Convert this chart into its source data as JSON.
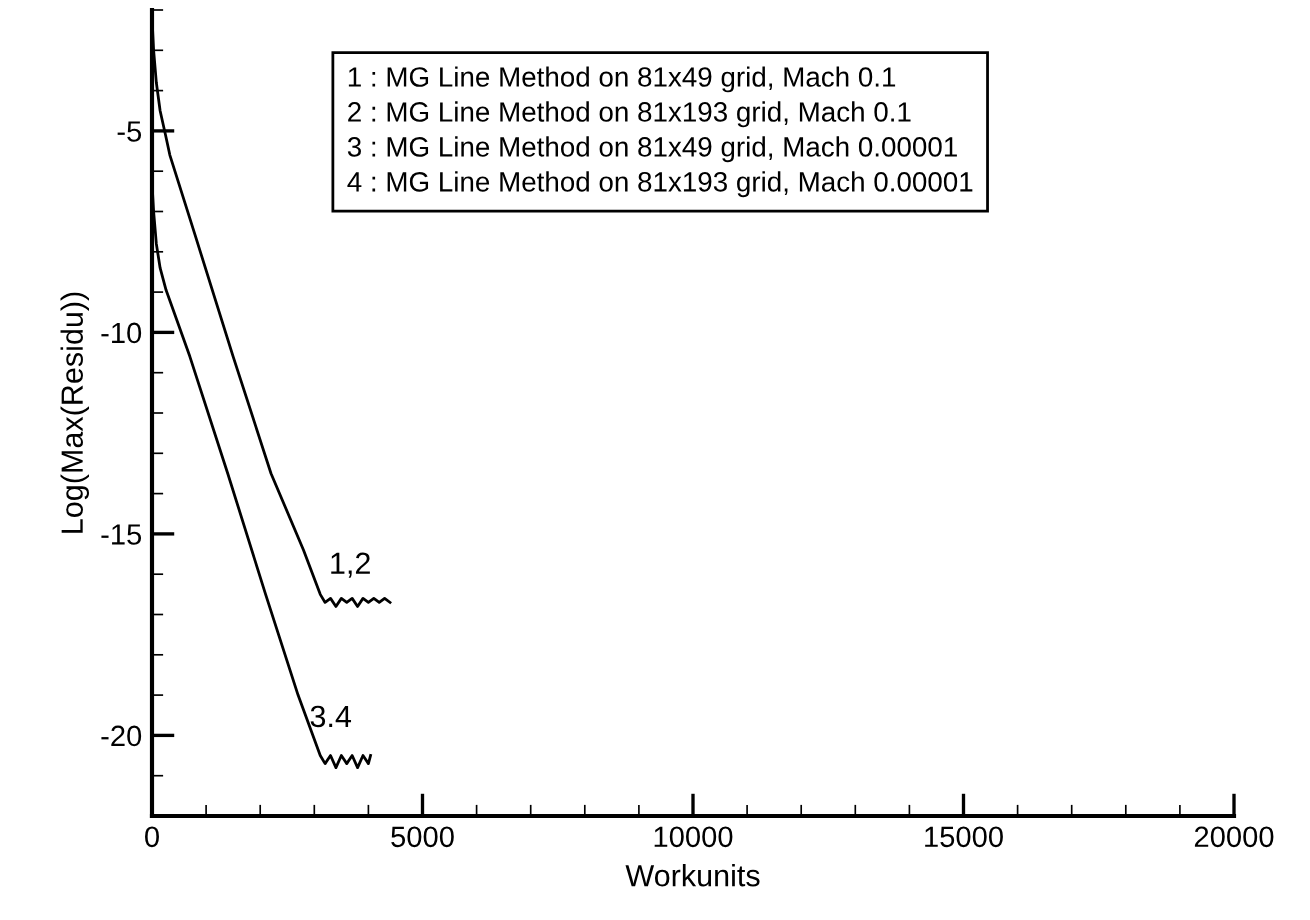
{
  "chart_data": {
    "type": "line",
    "xlabel": "Workunits",
    "ylabel": "Log(Max(Residu))",
    "xlim": [
      0,
      20000
    ],
    "ylim": [
      -22,
      -2
    ],
    "xticks": [
      0,
      5000,
      10000,
      15000,
      20000
    ],
    "yticks": [
      -20,
      -15,
      -10,
      -5
    ],
    "grid": false,
    "marker": "none",
    "line_style": "solid",
    "series": [
      {
        "color": "#000000",
        "x": [
          0,
          30,
          80,
          150,
          250,
          330,
          800,
          1500,
          2200,
          2800,
          3110,
          3200,
          3300,
          3400,
          3500,
          3600,
          3700,
          3800,
          3900,
          4000,
          4100,
          4200,
          4300,
          4400
        ],
        "values": [
          -2.2,
          -3.0,
          -3.8,
          -4.5,
          -5.1,
          -5.6,
          -7.6,
          -10.6,
          -13.5,
          -15.4,
          -16.5,
          -16.7,
          -16.6,
          -16.8,
          -16.6,
          -16.7,
          -16.6,
          -16.8,
          -16.6,
          -16.7,
          -16.6,
          -16.7,
          -16.6,
          -16.7
        ]
      },
      {
        "color": "#000000",
        "x": [
          0,
          30,
          80,
          150,
          260,
          700,
          1400,
          2100,
          2700,
          3110,
          3200,
          3300,
          3400,
          3500,
          3600,
          3700,
          3800,
          3900,
          4000,
          4040
        ],
        "values": [
          -6.3,
          -7.0,
          -7.8,
          -8.4,
          -8.95,
          -10.6,
          -13.5,
          -16.5,
          -19.0,
          -20.5,
          -20.7,
          -20.5,
          -20.8,
          -20.5,
          -20.7,
          -20.5,
          -20.8,
          -20.5,
          -20.7,
          -20.5
        ]
      }
    ],
    "annotations": [
      "1,2",
      "3.4",
      "1 : MG Line Method on 81x49 grid, Mach 0.1\n2 : MG Line Method on 81x193 grid, Mach 0.1\n3 : MG Line Method on 81x49 grid, Mach 0.00001\n4 : MG Line Method on 81x193 grid, Mach 0.00001"
    ]
  }
}
